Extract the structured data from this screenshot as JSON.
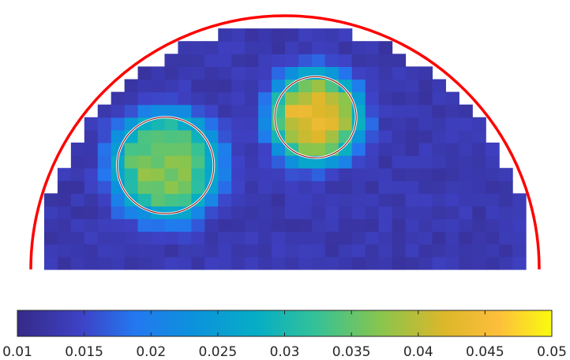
{
  "chart_data": {
    "type": "heatmap",
    "title": "",
    "xlabel": "",
    "ylabel": "",
    "domain_shape": "half-disk",
    "grid": {
      "cols": 38,
      "rows": 20
    },
    "background_value": 0.013,
    "colorbar": {
      "orientation": "horizontal",
      "location": "bottom",
      "colormap": "parula",
      "limits": [
        0.01,
        0.05
      ],
      "tick_values": [
        0.01,
        0.015,
        0.02,
        0.025,
        0.03,
        0.035,
        0.04,
        0.045,
        0.05
      ],
      "tick_labels": [
        "0.01",
        "0.015",
        "0.02",
        "0.025",
        "0.03",
        "0.035",
        "0.04",
        "0.045",
        "0.05"
      ]
    },
    "inclusions": [
      {
        "name": "left",
        "center": [
          -0.47,
          0.41
        ],
        "radius": 0.19,
        "peak_value": 0.037,
        "reference_ring": true
      },
      {
        "name": "right",
        "center": [
          0.12,
          0.6
        ],
        "radius": 0.16,
        "peak_value": 0.044,
        "reference_ring": true
      }
    ],
    "boundary_color": "#ff0000",
    "ring_color": "#8b0000"
  }
}
